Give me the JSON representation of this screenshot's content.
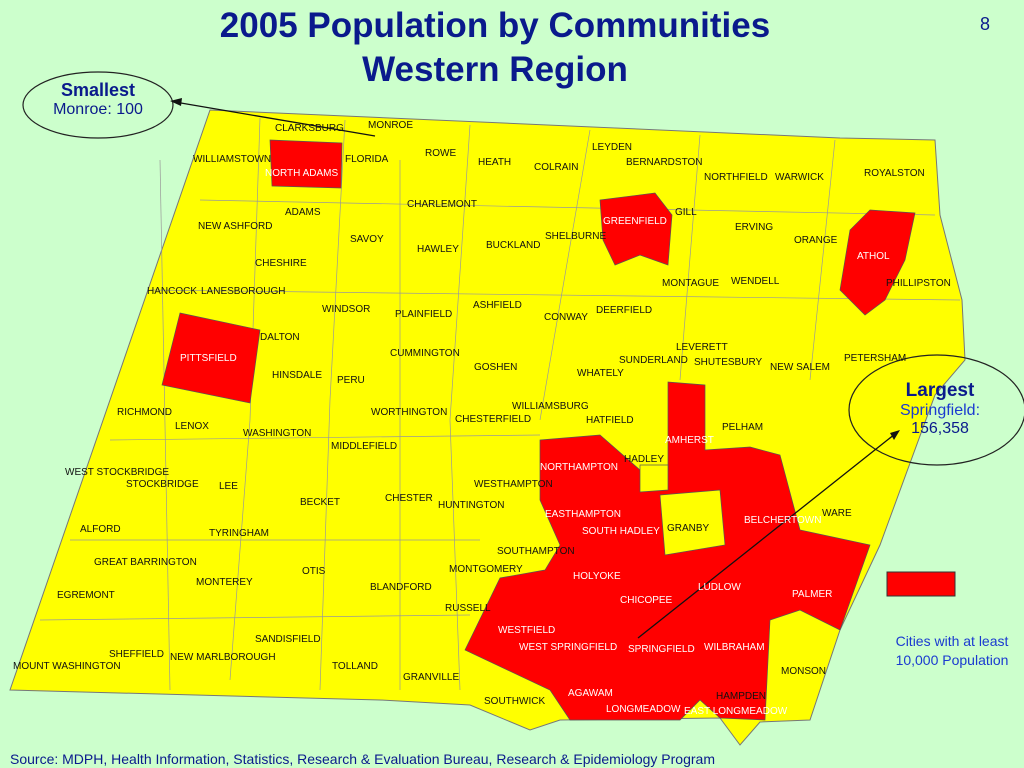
{
  "title_line1": "2005 Population by Communities",
  "title_line2": "Western Region",
  "slide_number": "8",
  "colors": {
    "background": "#ccffcc",
    "town_fill": "#ffff00",
    "city_fill": "#ff0000",
    "title": "#0a1a8c"
  },
  "smallest": {
    "heading": "Smallest",
    "text": "Monroe: 100"
  },
  "largest": {
    "heading": "Largest",
    "line1": "Springfield:",
    "line2": "156,358"
  },
  "legend": {
    "line1": "Cities with at least",
    "line2": "10,000 Population",
    "swatch_color": "#ff0000"
  },
  "source": "Source:  MDPH, Health Information, Statistics, Research & Evaluation Bureau, Research & Epidemiology Program",
  "towns": [
    "CLARKSBURG",
    "MONROE",
    "WILLIAMSTOWN",
    "NORTH ADAMS",
    "FLORIDA",
    "ROWE",
    "HEATH",
    "COLRAIN",
    "LEYDEN",
    "BERNARDSTON",
    "NORTHFIELD",
    "WARWICK",
    "ROYALSTON",
    "CHARLEMONT",
    "ADAMS",
    "NEW ASHFORD",
    "GREENFIELD",
    "GILL",
    "ERVING",
    "ORANGE",
    "ATHOL",
    "SAVOY",
    "HAWLEY",
    "BUCKLAND",
    "SHELBURNE",
    "CHESHIRE",
    "MONTAGUE",
    "WENDELL",
    "PHILLIPSTON",
    "HANCOCK",
    "LANESBOROUGH",
    "WINDSOR",
    "PLAINFIELD",
    "ASHFIELD",
    "CONWAY",
    "DEERFIELD",
    "DALTON",
    "PITTSFIELD",
    "CUMMINGTON",
    "LEVERETT",
    "SUNDERLAND",
    "SHUTESBURY",
    "NEW SALEM",
    "PETERSHAM",
    "HINSDALE",
    "PERU",
    "GOSHEN",
    "WHATELY",
    "WILLIAMSBURG",
    "RICHMOND",
    "WORTHINGTON",
    "CHESTERFIELD",
    "HATFIELD",
    "LENOX",
    "WASHINGTON",
    "MIDDLEFIELD",
    "AMHERST",
    "PELHAM",
    "NORTHAMPTON",
    "HADLEY",
    "WEST STOCKBRIDGE",
    "STOCKBRIDGE",
    "LEE",
    "CHESTER",
    "WESTHAMPTON",
    "BECKET",
    "HUNTINGTON",
    "EASTHAMPTON",
    "SOUTH HADLEY",
    "GRANBY",
    "BELCHERTOWN",
    "WARE",
    "ALFORD",
    "TYRINGHAM",
    "SOUTHAMPTON",
    "GREAT BARRINGTON",
    "OTIS",
    "MONTGOMERY",
    "HOLYOKE",
    "MONTEREY",
    "BLANDFORD",
    "LUDLOW",
    "EGREMONT",
    "CHICOPEE",
    "PALMER",
    "RUSSELL",
    "WESTFIELD",
    "SANDISFIELD",
    "WEST SPRINGFIELD",
    "SPRINGFIELD",
    "WILBRAHAM",
    "SHEFFIELD",
    "NEW MARLBOROUGH",
    "MOUNT WASHINGTON",
    "TOLLAND",
    "MONSON",
    "GRANVILLE",
    "AGAWAM",
    "HAMPDEN",
    "SOUTHWICK",
    "LONGMEADOW",
    "EAST LONGMEADOW"
  ],
  "cities": [
    "NORTH ADAMS",
    "PITTSFIELD",
    "GREENFIELD",
    "ATHOL",
    "AMHERST",
    "NORTHAMPTON",
    "EASTHAMPTON",
    "SOUTH HADLEY",
    "BELCHERTOWN",
    "HOLYOKE",
    "LUDLOW",
    "CHICOPEE",
    "PALMER",
    "WESTFIELD",
    "WEST SPRINGFIELD",
    "SPRINGFIELD",
    "WILBRAHAM",
    "AGAWAM",
    "LONGMEADOW",
    "EAST LONGMEADOW"
  ]
}
